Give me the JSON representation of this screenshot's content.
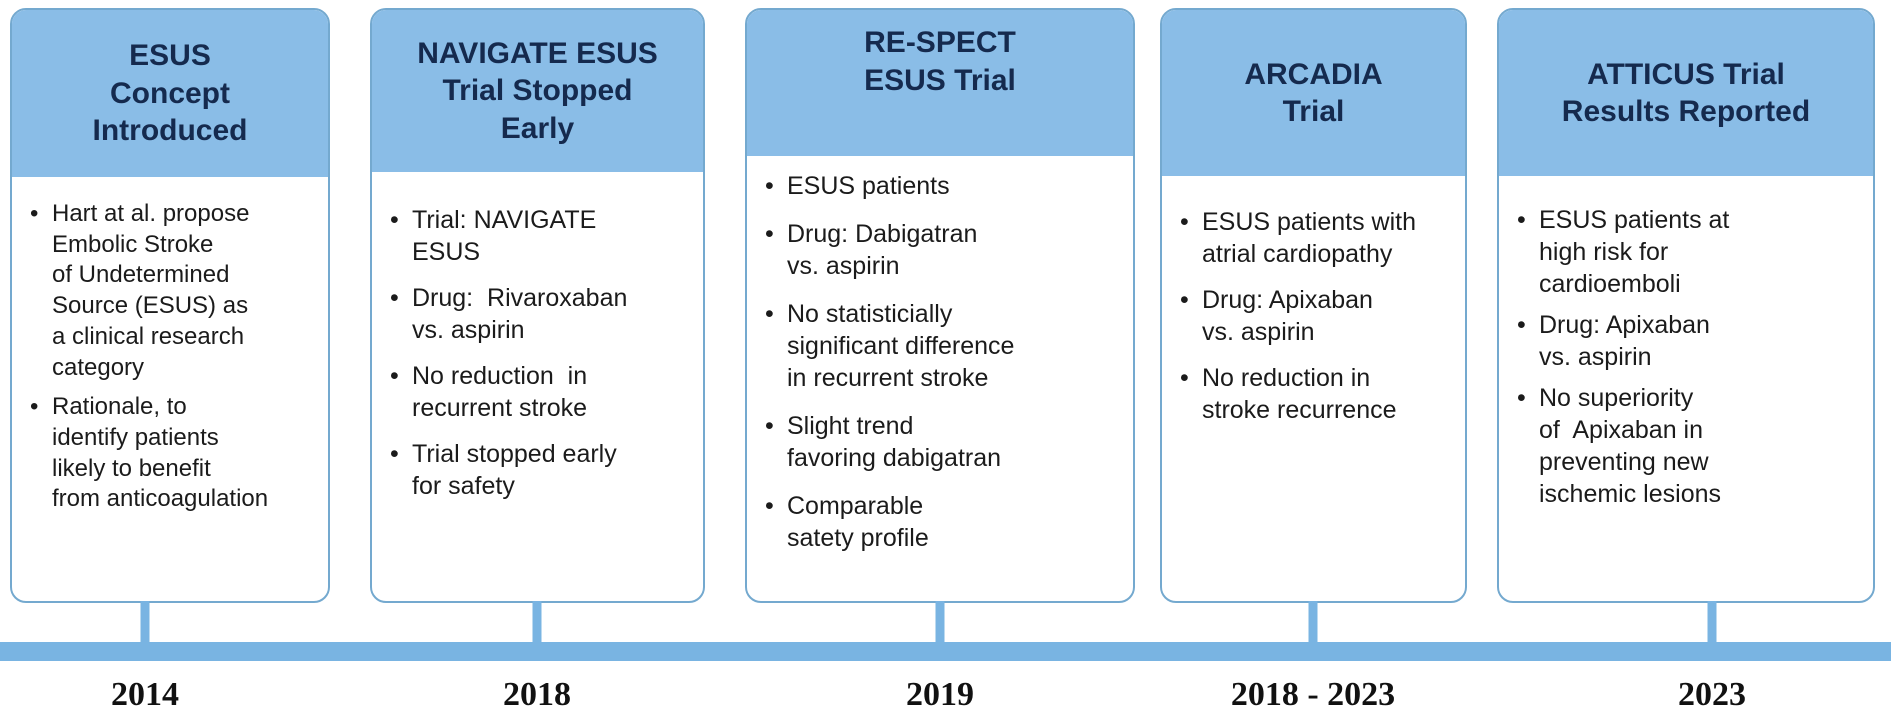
{
  "colors": {
    "header_blue": "#8abde7",
    "bar_blue": "#79b4e2",
    "border_blue": "#74a9cf",
    "header_text": "#152a4e",
    "body_text": "#1b1b1b",
    "year_text": "#111111"
  },
  "bullet_glyph": "•",
  "timeline": {
    "years": [
      "2014",
      "2018",
      "2019",
      "2018 - 2023",
      "2023"
    ]
  },
  "cards": [
    {
      "title": "ESUS\nConcept\nIntroduced",
      "year": "2014",
      "bullets": [
        "Hart at al. propose\nEmbolic Stroke\nof Undetermined\nSource (ESUS) as\na clinical research\ncategory",
        "Rationale, to\nidentify patients\nlikely to benefit\nfrom anticoagulation"
      ]
    },
    {
      "title": "NAVIGATE ESUS\nTrial Stopped\nEarly",
      "year": "2018",
      "bullets": [
        "Trial: NAVIGATE\nESUS",
        "Drug:  Rivaroxaban\nvs. aspirin",
        "No reduction  in\nrecurrent stroke",
        "Trial stopped early\nfor safety"
      ]
    },
    {
      "title": "RE-SPECT\nESUS Trial",
      "year": "2019",
      "bullets": [
        "ESUS patients",
        "Drug: Dabigatran\nvs. aspirin",
        "No statisticially\nsignificant difference\nin recurrent stroke",
        "Slight trend\nfavoring dabigatran",
        "Comparable\nsatety profile"
      ]
    },
    {
      "title": "ARCADIA\nTrial",
      "year": "2018 - 2023",
      "bullets": [
        "ESUS patients with\natrial cardiopathy",
        "Drug: Apixaban\nvs. aspirin",
        "No reduction in\nstroke recurrence"
      ]
    },
    {
      "title": "ATTICUS Trial\nResults Reported",
      "year": "2023",
      "bullets": [
        "ESUS patients at\nhigh risk for\ncardioemboli",
        "Drug: Apixaban\nvs. aspirin",
        "No superiority\nof  Apixaban in\npreventing new\nischemic lesions"
      ]
    }
  ]
}
